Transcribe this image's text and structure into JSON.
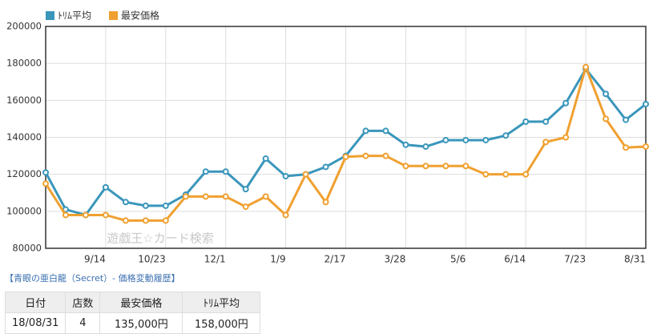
{
  "chart_data": {
    "type": "line",
    "watermark": "遊戯王☆カード検索",
    "categories": [
      null,
      null,
      null,
      "9/14",
      null,
      null,
      "10/23",
      null,
      null,
      "12/1",
      null,
      null,
      "1/9",
      null,
      null,
      "2/17",
      null,
      null,
      "3/28",
      null,
      null,
      "5/6",
      null,
      null,
      "6/14",
      null,
      null,
      "7/23",
      null,
      null,
      "8/31"
    ],
    "series": [
      {
        "name": "ﾄﾘﾑ平均",
        "color": "#3a96bb",
        "values": [
          121000,
          101000,
          98000,
          113000,
          105000,
          103000,
          103000,
          109000,
          121500,
          121500,
          112000,
          128500,
          119000,
          120000,
          124000,
          130000,
          143500,
          143500,
          136000,
          135000,
          138500,
          138500,
          138500,
          141000,
          148500,
          148500,
          158500,
          177000,
          163500,
          149500,
          158000
        ]
      },
      {
        "name": "最安価格",
        "color": "#f0a030",
        "values": [
          115000,
          98000,
          98000,
          98000,
          95000,
          95000,
          95000,
          108000,
          108000,
          108000,
          102500,
          108000,
          98000,
          120000,
          105000,
          129500,
          130000,
          130000,
          124500,
          124500,
          124500,
          124500,
          120000,
          120000,
          120000,
          137500,
          140000,
          178000,
          150000,
          134500,
          135000
        ]
      }
    ],
    "ylim": [
      80000,
      200000
    ],
    "yticks": [
      80000,
      100000,
      120000,
      140000,
      160000,
      180000,
      200000
    ],
    "grid": true
  },
  "caption": "【青眼の亜白龍（Secret）- 価格変動履歴】",
  "table": {
    "headers": [
      "日付",
      "店数",
      "最安価格",
      "ﾄﾘﾑ平均"
    ],
    "rows": [
      [
        "18/08/31",
        "4",
        "135,000円",
        "158,000円"
      ]
    ]
  }
}
